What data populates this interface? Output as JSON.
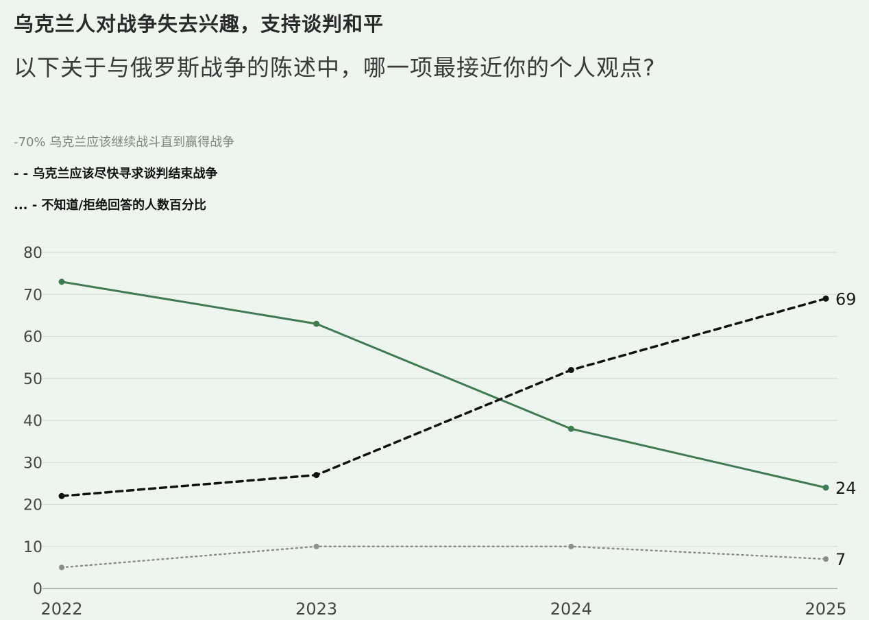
{
  "title": "乌克兰人对战争失去兴趣，支持谈判和平",
  "subtitle": "以下关于与俄罗斯战争的陈述中，哪一项最接近你的个人观点?",
  "legend": [
    "-70% 乌克兰应该继续战斗直到赢得战争",
    "- - 乌克兰应该尽快寻求谈判结束战争",
    "... - 不知道/拒绝回答的人数百分比"
  ],
  "colors": {
    "fight": "#3f7a52",
    "negotiate": "#111111",
    "unknown": "#8a8f8a",
    "grid": "#d4dcd4",
    "axis_text": "#444444"
  },
  "chart_data": {
    "type": "line",
    "x": [
      "2022",
      "2023",
      "2024",
      "2025"
    ],
    "xtick_labels": [
      "2022",
      "2023",
      "2024",
      "2025"
    ],
    "ylim": [
      0,
      80
    ],
    "yticks": [
      0,
      10,
      20,
      30,
      40,
      50,
      60,
      70,
      80
    ],
    "grid": true,
    "series": [
      {
        "name": "乌克兰应该继续战斗直到赢得战争",
        "style": "solid",
        "values": [
          73,
          63,
          38,
          24
        ],
        "end_label": "24"
      },
      {
        "name": "乌克兰应该尽快寻求谈判结束战争",
        "style": "dashed",
        "values": [
          22,
          27,
          52,
          69
        ],
        "end_label": "69"
      },
      {
        "name": "不知道/拒绝回答的人数百分比",
        "style": "dotted",
        "values": [
          5,
          10,
          10,
          7
        ],
        "end_label": "7"
      }
    ]
  }
}
